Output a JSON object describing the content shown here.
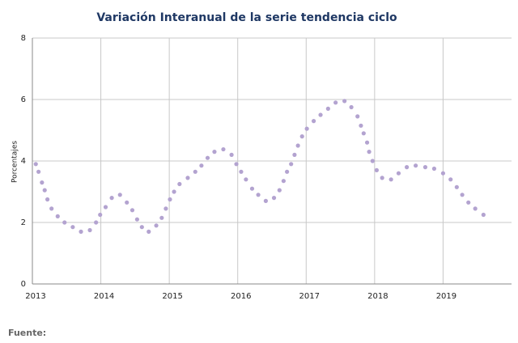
{
  "chart_data": {
    "type": "scatter",
    "title": "Variación Interanual de la serie tendencia ciclo",
    "y_label": "Porcentajes",
    "source": "Fuente:",
    "color": "#b3a3d0",
    "grid": true,
    "x": [
      2013.05,
      2013.09,
      2013.14,
      2013.18,
      2013.22,
      2013.28,
      2013.37,
      2013.47,
      2013.59,
      2013.71,
      2013.84,
      2013.93,
      2013.99,
      2014.07,
      2014.16,
      2014.28,
      2014.38,
      2014.46,
      2014.53,
      2014.6,
      2014.7,
      2014.81,
      2014.89,
      2014.95,
      2015.01,
      2015.07,
      2015.15,
      2015.27,
      2015.38,
      2015.47,
      2015.56,
      2015.66,
      2015.79,
      2015.91,
      2015.98,
      2016.05,
      2016.12,
      2016.21,
      2016.3,
      2016.41,
      2016.53,
      2016.61,
      2016.67,
      2016.72,
      2016.78,
      2016.83,
      2016.88,
      2016.94,
      2017.01,
      2017.11,
      2017.21,
      2017.32,
      2017.43,
      2017.56,
      2017.66,
      2017.75,
      2017.8,
      2017.84,
      2017.89,
      2017.92,
      2017.97,
      2018.03,
      2018.11,
      2018.24,
      2018.35,
      2018.47,
      2018.6,
      2018.74,
      2018.87,
      2019.0,
      2019.11,
      2019.2,
      2019.28,
      2019.37,
      2019.47,
      2019.59
    ],
    "values": [
      3.9,
      3.65,
      3.3,
      3.05,
      2.75,
      2.45,
      2.2,
      2.0,
      1.85,
      1.7,
      1.75,
      2.0,
      2.25,
      2.5,
      2.8,
      2.9,
      2.65,
      2.4,
      2.1,
      1.85,
      1.7,
      1.9,
      2.15,
      2.45,
      2.75,
      3.0,
      3.25,
      3.45,
      3.65,
      3.85,
      4.1,
      4.3,
      4.38,
      4.2,
      3.9,
      3.65,
      3.4,
      3.1,
      2.9,
      2.7,
      2.8,
      3.05,
      3.35,
      3.65,
      3.9,
      4.2,
      4.5,
      4.8,
      5.05,
      5.3,
      5.5,
      5.7,
      5.9,
      5.95,
      5.75,
      5.45,
      5.15,
      4.9,
      4.6,
      4.3,
      4.0,
      3.7,
      3.45,
      3.4,
      3.6,
      3.8,
      3.85,
      3.8,
      3.75,
      3.6,
      3.4,
      3.15,
      2.9,
      2.65,
      2.45,
      2.25
    ],
    "xlim": [
      2013,
      2020
    ],
    "xticks": [
      2013,
      2014,
      2015,
      2016,
      2017,
      2018,
      2019
    ],
    "ylim": [
      0,
      8
    ],
    "yticks": [
      0,
      2,
      4,
      6,
      8
    ]
  }
}
